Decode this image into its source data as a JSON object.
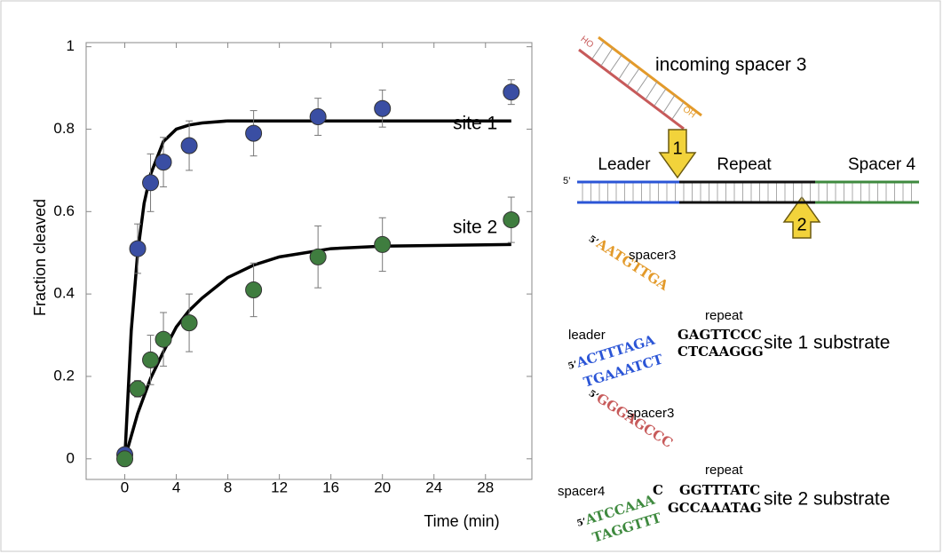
{
  "chart_data": {
    "type": "scatter",
    "y_label": "Fraction cleaved",
    "x_label": "Time (min)",
    "xlim": [
      -3,
      31.6
    ],
    "xticks": [
      0,
      4,
      8,
      12,
      16,
      20,
      24,
      28
    ],
    "ylim": [
      -0.05,
      1.01
    ],
    "yticks": [
      0,
      0.2,
      0.4,
      0.6,
      0.8,
      1
    ],
    "series": [
      {
        "name": "site 1",
        "color": "#3a4ea3",
        "x": [
          0,
          1,
          2,
          3,
          5,
          10,
          15,
          20,
          30
        ],
        "values": [
          0.01,
          0.51,
          0.67,
          0.72,
          0.76,
          0.79,
          0.83,
          0.85,
          0.89
        ],
        "errors": [
          0.01,
          0.06,
          0.07,
          0.06,
          0.06,
          0.055,
          0.045,
          0.045,
          0.03
        ],
        "fit": {
          "color": "#000000",
          "x": [
            0,
            0.5,
            1,
            1.5,
            2,
            3,
            4,
            5,
            6,
            8,
            12,
            20,
            30
          ],
          "values": [
            0,
            0.31,
            0.5,
            0.62,
            0.69,
            0.77,
            0.8,
            0.81,
            0.815,
            0.82,
            0.82,
            0.82,
            0.82
          ]
        }
      },
      {
        "name": "site 2",
        "color": "#3f7d3f",
        "x": [
          0,
          1,
          2,
          3,
          5,
          10,
          15,
          20,
          30
        ],
        "values": [
          0,
          0.17,
          0.24,
          0.29,
          0.33,
          0.41,
          0.49,
          0.52,
          0.58
        ],
        "errors": [
          0,
          0.02,
          0.06,
          0.065,
          0.07,
          0.065,
          0.075,
          0.065,
          0.055
        ],
        "fit": {
          "color": "#000000",
          "x": [
            0,
            1,
            2,
            3,
            4,
            5,
            6,
            8,
            10,
            12,
            16,
            20,
            30
          ],
          "values": [
            0,
            0.11,
            0.195,
            0.26,
            0.32,
            0.36,
            0.39,
            0.44,
            0.47,
            0.49,
            0.51,
            0.516,
            0.52
          ]
        }
      }
    ]
  },
  "diagram": {
    "incoming": {
      "label": "incoming spacer 3",
      "ho": "HO",
      "oh": "OH"
    },
    "sites": [
      "1",
      "2"
    ],
    "duplex": {
      "five_prime": "5’",
      "segments": [
        "Leader",
        "Repeat",
        "Spacer 4"
      ]
    },
    "substrates": [
      {
        "name": "site 1 substrate",
        "spacer_five_prime": "5’",
        "spacer": "AATGTTGA",
        "spacer_label": "spacer3",
        "repeat_label": "repeat",
        "left_label": "leader",
        "left_five_prime": "5’",
        "left_top": "ACTTTAGA",
        "left_bottom": "TGAAATCT",
        "right_top": "GAGTTCCC",
        "right_bottom": "CTCAAGGG"
      },
      {
        "name": "site 2 substrate",
        "spacer_five_prime": "5’",
        "spacer": "GGGAGCCC",
        "spacer_label": "spacer3",
        "repeat_label": "repeat",
        "left_label": "spacer4",
        "left_five_prime": "5’",
        "left_top": "ATCCAAA",
        "junction": "C",
        "left_bottom": "TAGGTTT",
        "right_top": "GGTTTATC",
        "right_bottom": "GCCAAATAG"
      }
    ]
  }
}
